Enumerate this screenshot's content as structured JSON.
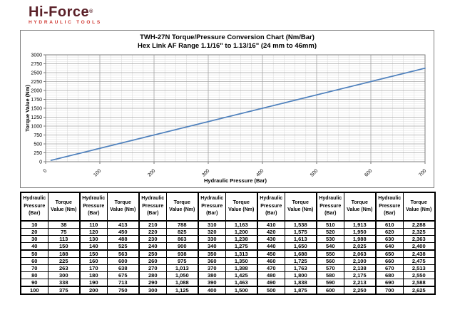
{
  "logo": {
    "brand": "Hi-Force",
    "registered_mark": "®",
    "tagline": "HYDRAULIC TOOLS",
    "brand_color": "#5a2028",
    "tagline_color": "#d03a34"
  },
  "chart_data": {
    "type": "line",
    "title": "TWH-27N Torque/Pressure Conversion Chart (Nm/Bar)",
    "subtitle": "Hex Link AF Range 1.1/16\" to 1.13/16\" (24 mm to 46mm)",
    "xlabel": "Hydraulic Pressure (Bar)",
    "ylabel": "Torque Value (Nm)",
    "xlim": [
      0,
      700
    ],
    "ylim": [
      0,
      3000
    ],
    "x_ticks": [
      0,
      100,
      200,
      300,
      400,
      500,
      600,
      700
    ],
    "y_tick_step": 250,
    "x_minor_step": 20,
    "y_minor_step": 62.5,
    "grid": "major+minor",
    "legend": "none",
    "line_color": "#4f81bd",
    "major_grid_color": "#a3a3a3",
    "minor_grid_color": "#dcdcdc",
    "axis_color": "#7f7f7f",
    "series": [
      {
        "name": "Torque Value (Nm)",
        "x": [
          10,
          20,
          30,
          40,
          50,
          60,
          70,
          80,
          90,
          100,
          110,
          120,
          130,
          140,
          150,
          160,
          170,
          180,
          190,
          200,
          210,
          220,
          230,
          240,
          250,
          260,
          270,
          280,
          290,
          300,
          310,
          320,
          330,
          340,
          350,
          360,
          370,
          380,
          390,
          400,
          410,
          420,
          430,
          440,
          450,
          460,
          470,
          480,
          490,
          500,
          510,
          520,
          530,
          540,
          550,
          560,
          570,
          580,
          590,
          600,
          610,
          620,
          630,
          640,
          650,
          660,
          670,
          680,
          690,
          700
        ],
        "y": [
          38,
          75,
          113,
          150,
          188,
          225,
          263,
          300,
          338,
          375,
          413,
          450,
          488,
          525,
          563,
          600,
          638,
          675,
          713,
          750,
          788,
          825,
          863,
          900,
          938,
          975,
          1013,
          1050,
          1088,
          1125,
          1163,
          1200,
          1238,
          1275,
          1313,
          1350,
          1388,
          1425,
          1463,
          1500,
          1538,
          1575,
          1613,
          1650,
          1688,
          1725,
          1763,
          1800,
          1838,
          1875,
          1913,
          1950,
          1988,
          2025,
          2063,
          2100,
          2138,
          2175,
          2213,
          2250,
          2288,
          2325,
          2363,
          2400,
          2438,
          2475,
          2513,
          2550,
          2588,
          2625
        ]
      }
    ]
  },
  "table": {
    "header_pressure_lines": [
      "Hydraulic",
      "Pressure",
      "(Bar)"
    ],
    "header_torque_lines": [
      "Torque",
      "Value (Nm)"
    ],
    "groups": [
      {
        "pressure": [
          10,
          20,
          30,
          40,
          50,
          60,
          70,
          80,
          90,
          100
        ],
        "torque": [
          38,
          75,
          113,
          150,
          188,
          225,
          263,
          300,
          338,
          375
        ]
      },
      {
        "pressure": [
          110,
          120,
          130,
          140,
          150,
          160,
          170,
          180,
          190,
          200
        ],
        "torque": [
          413,
          450,
          488,
          525,
          563,
          600,
          638,
          675,
          713,
          750
        ]
      },
      {
        "pressure": [
          210,
          220,
          230,
          240,
          250,
          260,
          270,
          280,
          290,
          300
        ],
        "torque": [
          788,
          825,
          863,
          900,
          938,
          975,
          1013,
          1050,
          1088,
          1125
        ]
      },
      {
        "pressure": [
          310,
          320,
          330,
          340,
          350,
          360,
          370,
          380,
          390,
          400
        ],
        "torque": [
          1163,
          1200,
          1238,
          1275,
          1313,
          1350,
          1388,
          1425,
          1463,
          1500
        ]
      },
      {
        "pressure": [
          410,
          420,
          430,
          440,
          450,
          460,
          470,
          480,
          490,
          500
        ],
        "torque": [
          1538,
          1575,
          1613,
          1650,
          1688,
          1725,
          1763,
          1800,
          1838,
          1875
        ]
      },
      {
        "pressure": [
          510,
          520,
          530,
          540,
          550,
          560,
          570,
          580,
          590,
          600
        ],
        "torque": [
          1913,
          1950,
          1988,
          2025,
          2063,
          2100,
          2138,
          2175,
          2213,
          2250
        ]
      },
      {
        "pressure": [
          610,
          620,
          630,
          640,
          650,
          660,
          670,
          680,
          690,
          700
        ],
        "torque": [
          2288,
          2325,
          2363,
          2400,
          2438,
          2475,
          2513,
          2550,
          2588,
          2625
        ]
      }
    ]
  }
}
